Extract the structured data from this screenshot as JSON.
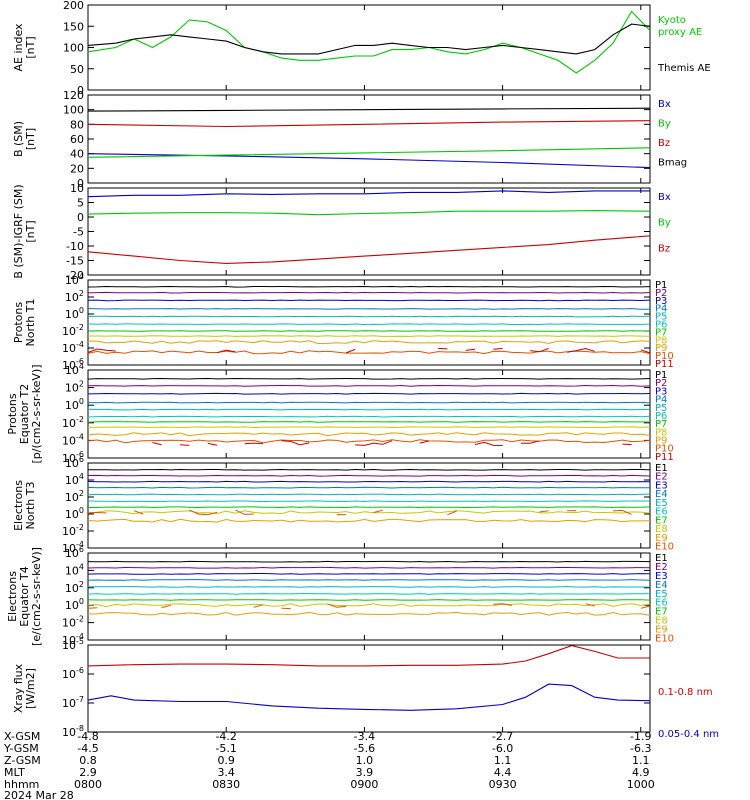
{
  "colors": {
    "black": "#000000",
    "blue": "#0000cc",
    "green": "#00c800",
    "red": "#cc0000",
    "p_ch": [
      "#000000",
      "#800080",
      "#0000cc",
      "#0078c8",
      "#00b4c8",
      "#00c8b4",
      "#00c800",
      "#c8c800",
      "#e6a000",
      "#e65000",
      "#cc0000"
    ]
  },
  "chart_data": [
    {
      "type": "line",
      "ylabel": "AE index\n[nT]",
      "ylim": [
        0,
        200
      ],
      "yticks": [
        "200",
        "150",
        "100",
        "50",
        "0"
      ],
      "series": [
        {
          "name": "Kyoto\nproxy AE",
          "color": "#00c800",
          "x": [
            0,
            6,
            10,
            14,
            18,
            22,
            26,
            30,
            34,
            38,
            42,
            46,
            50,
            54,
            58,
            62,
            66,
            70,
            74,
            78,
            82,
            86,
            90,
            94,
            98,
            102,
            106,
            110,
            114,
            118,
            122
          ],
          "values": [
            90,
            100,
            120,
            100,
            125,
            165,
            160,
            140,
            100,
            90,
            75,
            70,
            70,
            75,
            80,
            80,
            95,
            95,
            100,
            90,
            85,
            95,
            110,
            100,
            85,
            70,
            40,
            70,
            110,
            185,
            140
          ]
        },
        {
          "name": "Themis AE",
          "color": "#000000",
          "x": [
            0,
            6,
            10,
            14,
            18,
            22,
            26,
            30,
            34,
            38,
            42,
            46,
            50,
            54,
            58,
            62,
            66,
            70,
            74,
            78,
            82,
            86,
            90,
            94,
            98,
            102,
            106,
            110,
            114,
            118,
            122
          ],
          "values": [
            105,
            110,
            120,
            125,
            130,
            125,
            120,
            115,
            100,
            90,
            85,
            85,
            85,
            95,
            105,
            105,
            110,
            105,
            100,
            100,
            95,
            100,
            105,
            100,
            95,
            90,
            85,
            95,
            130,
            155,
            150
          ]
        }
      ]
    },
    {
      "type": "line",
      "ylabel": "B (SM)\n[nT]",
      "ylim": [
        0,
        120
      ],
      "yticks": [
        "120",
        "100",
        "80",
        "60",
        "40",
        "20",
        "0"
      ],
      "series": [
        {
          "name": "Bx",
          "color": "#0000cc",
          "x": [
            0,
            30,
            60,
            90,
            122
          ],
          "values": [
            40,
            37,
            33,
            28,
            21
          ]
        },
        {
          "name": "By",
          "color": "#00c800",
          "x": [
            0,
            30,
            60,
            90,
            122
          ],
          "values": [
            35,
            38,
            41,
            44,
            48
          ]
        },
        {
          "name": "Bz",
          "color": "#cc0000",
          "x": [
            0,
            30,
            60,
            90,
            122
          ],
          "values": [
            80,
            77,
            80,
            83,
            85
          ]
        },
        {
          "name": "Bmag",
          "color": "#000000",
          "x": [
            0,
            30,
            60,
            90,
            122
          ],
          "values": [
            98,
            99,
            100,
            101,
            102
          ]
        }
      ]
    },
    {
      "type": "line",
      "ylabel": "B (SM)-IGRF (SM)\n[nT]",
      "ylim": [
        -20,
        10
      ],
      "yticks": [
        "10",
        "5",
        "0",
        "-5",
        "-10",
        "-15",
        "-20"
      ],
      "series": [
        {
          "name": "Bx",
          "color": "#0000cc",
          "x": [
            0,
            10,
            20,
            30,
            40,
            50,
            60,
            70,
            80,
            90,
            100,
            110,
            122
          ],
          "values": [
            7,
            7.5,
            7.5,
            8,
            7.8,
            8,
            8,
            8.5,
            8.5,
            9,
            8.5,
            9,
            9
          ]
        },
        {
          "name": "By",
          "color": "#00c800",
          "x": [
            0,
            10,
            20,
            30,
            40,
            50,
            60,
            70,
            80,
            90,
            100,
            110,
            122
          ],
          "values": [
            1,
            1.3,
            1.5,
            1.5,
            1.3,
            0.8,
            1.2,
            1.5,
            2,
            2,
            2,
            2.2,
            2
          ]
        },
        {
          "name": "Bz",
          "color": "#cc0000",
          "x": [
            0,
            10,
            20,
            30,
            40,
            50,
            60,
            70,
            80,
            90,
            100,
            110,
            122
          ],
          "values": [
            -12,
            -13.5,
            -15,
            -16,
            -15.5,
            -14.5,
            -13.5,
            -12.5,
            -11.5,
            -10.5,
            -9.5,
            -8,
            -6.5
          ]
        }
      ]
    },
    {
      "type": "line",
      "ylabel": "Protons\nNorth T1",
      "yscale": "log",
      "ylim": [
        -6,
        4
      ],
      "yticks": [
        "10^4",
        "10^2",
        "10^0",
        "10^-2",
        "10^-4",
        "10^-6"
      ],
      "legend": [
        "P1",
        "P2",
        "P3",
        "P4",
        "P5",
        "P6",
        "P7",
        "P8",
        "P9",
        "P10",
        "P11"
      ],
      "levels_exp": [
        3.2,
        2.5,
        1.6,
        0.6,
        -0.3,
        -1.2,
        -2.0,
        -2.6,
        -3.3,
        -4.5,
        -6.5
      ]
    },
    {
      "type": "line",
      "ylabel": "Protons\nEquator T2\n[p/(cm2-s-sr-keV)]",
      "yscale": "log",
      "ylim": [
        -6,
        4
      ],
      "yticks": [
        "10^4",
        "10^2",
        "10^0",
        "10^-2",
        "10^-4",
        "10^-6"
      ],
      "legend": [
        "P1",
        "P2",
        "P3",
        "P4",
        "P5",
        "P6",
        "P7",
        "P8",
        "P9",
        "P10",
        "P11"
      ],
      "levels_exp": [
        3.0,
        2.2,
        1.3,
        0.3,
        -0.5,
        -1.3,
        -1.9,
        -2.5,
        -3.3,
        -4.1,
        -6.5
      ]
    },
    {
      "type": "line",
      "ylabel": "Electrons\nNorth T3",
      "yscale": "log",
      "ylim": [
        -4,
        6
      ],
      "yticks": [
        "10^6",
        "10^4",
        "10^2",
        "10^0",
        "10^-2",
        "10^-4"
      ],
      "legend": [
        "E1",
        "E2",
        "E3",
        "E4",
        "E5",
        "E6",
        "E7",
        "E8",
        "E9",
        "E10"
      ],
      "levels_exp": [
        5.2,
        4.5,
        3.8,
        3.1,
        2.3,
        1.5,
        0.8,
        0.2,
        -0.8,
        -2.0
      ]
    },
    {
      "type": "line",
      "ylabel": "Electrons\nEquator T4\n[e/(cm2-s-sr-keV)]",
      "yscale": "log",
      "ylim": [
        -4,
        6
      ],
      "yticks": [
        "10^6",
        "10^4",
        "10^2",
        "10^0",
        "10^-2",
        "10^-4"
      ],
      "legend": [
        "E1",
        "E2",
        "E3",
        "E4",
        "E5",
        "E6",
        "E7",
        "E8",
        "E9",
        "E10"
      ],
      "levels_exp": [
        5.0,
        4.3,
        3.6,
        2.9,
        2.1,
        1.3,
        0.6,
        0.0,
        -1.0,
        -2.3
      ]
    },
    {
      "type": "line",
      "ylabel": "Xray flux\n[W/m2]",
      "yscale": "log",
      "ylim": [
        -8,
        -5
      ],
      "yticks": [
        "10^-5",
        "10^-6",
        "10^-7",
        "10^-8"
      ],
      "series": [
        {
          "name": "0.1-0.8 nm",
          "color": "#cc0000",
          "x": [
            0,
            10,
            20,
            30,
            40,
            50,
            60,
            70,
            80,
            90,
            95,
            100,
            105,
            110,
            115,
            122
          ],
          "values": [
            -5.72,
            -5.68,
            -5.66,
            -5.66,
            -5.68,
            -5.72,
            -5.72,
            -5.7,
            -5.7,
            -5.66,
            -5.55,
            -5.3,
            -5.02,
            -5.22,
            -5.45,
            -5.45
          ]
        },
        {
          "name": "0.05-0.4 nm",
          "color": "#0000cc",
          "x": [
            0,
            5,
            10,
            20,
            30,
            40,
            50,
            60,
            70,
            80,
            90,
            95,
            100,
            105,
            110,
            115,
            122
          ],
          "values": [
            -6.9,
            -6.75,
            -6.9,
            -6.95,
            -6.95,
            -7.1,
            -7.18,
            -7.22,
            -7.25,
            -7.2,
            -7.05,
            -6.8,
            -6.35,
            -6.4,
            -6.8,
            -6.9,
            -6.92
          ]
        }
      ]
    }
  ],
  "footer": {
    "row_labels": [
      "X-GSM",
      "Y-GSM",
      "Z-GSM",
      "MLT",
      "hhmm"
    ],
    "date": "2024 Mar 28",
    "columns": [
      {
        "x": "-4.8",
        "y": "-4.5",
        "z": "0.8",
        "mlt": "2.9",
        "hhmm": "0800"
      },
      {
        "x": "-4.2",
        "y": "-5.1",
        "z": "0.9",
        "mlt": "3.4",
        "hhmm": "0830"
      },
      {
        "x": "-3.4",
        "y": "-5.6",
        "z": "1.0",
        "mlt": "3.9",
        "hhmm": "0900"
      },
      {
        "x": "-2.7",
        "y": "-6.0",
        "z": "1.1",
        "mlt": "4.4",
        "hhmm": "0930"
      },
      {
        "x": "-1.9",
        "y": "-6.3",
        "z": "1.1",
        "mlt": "4.9",
        "hhmm": "1000"
      }
    ]
  }
}
